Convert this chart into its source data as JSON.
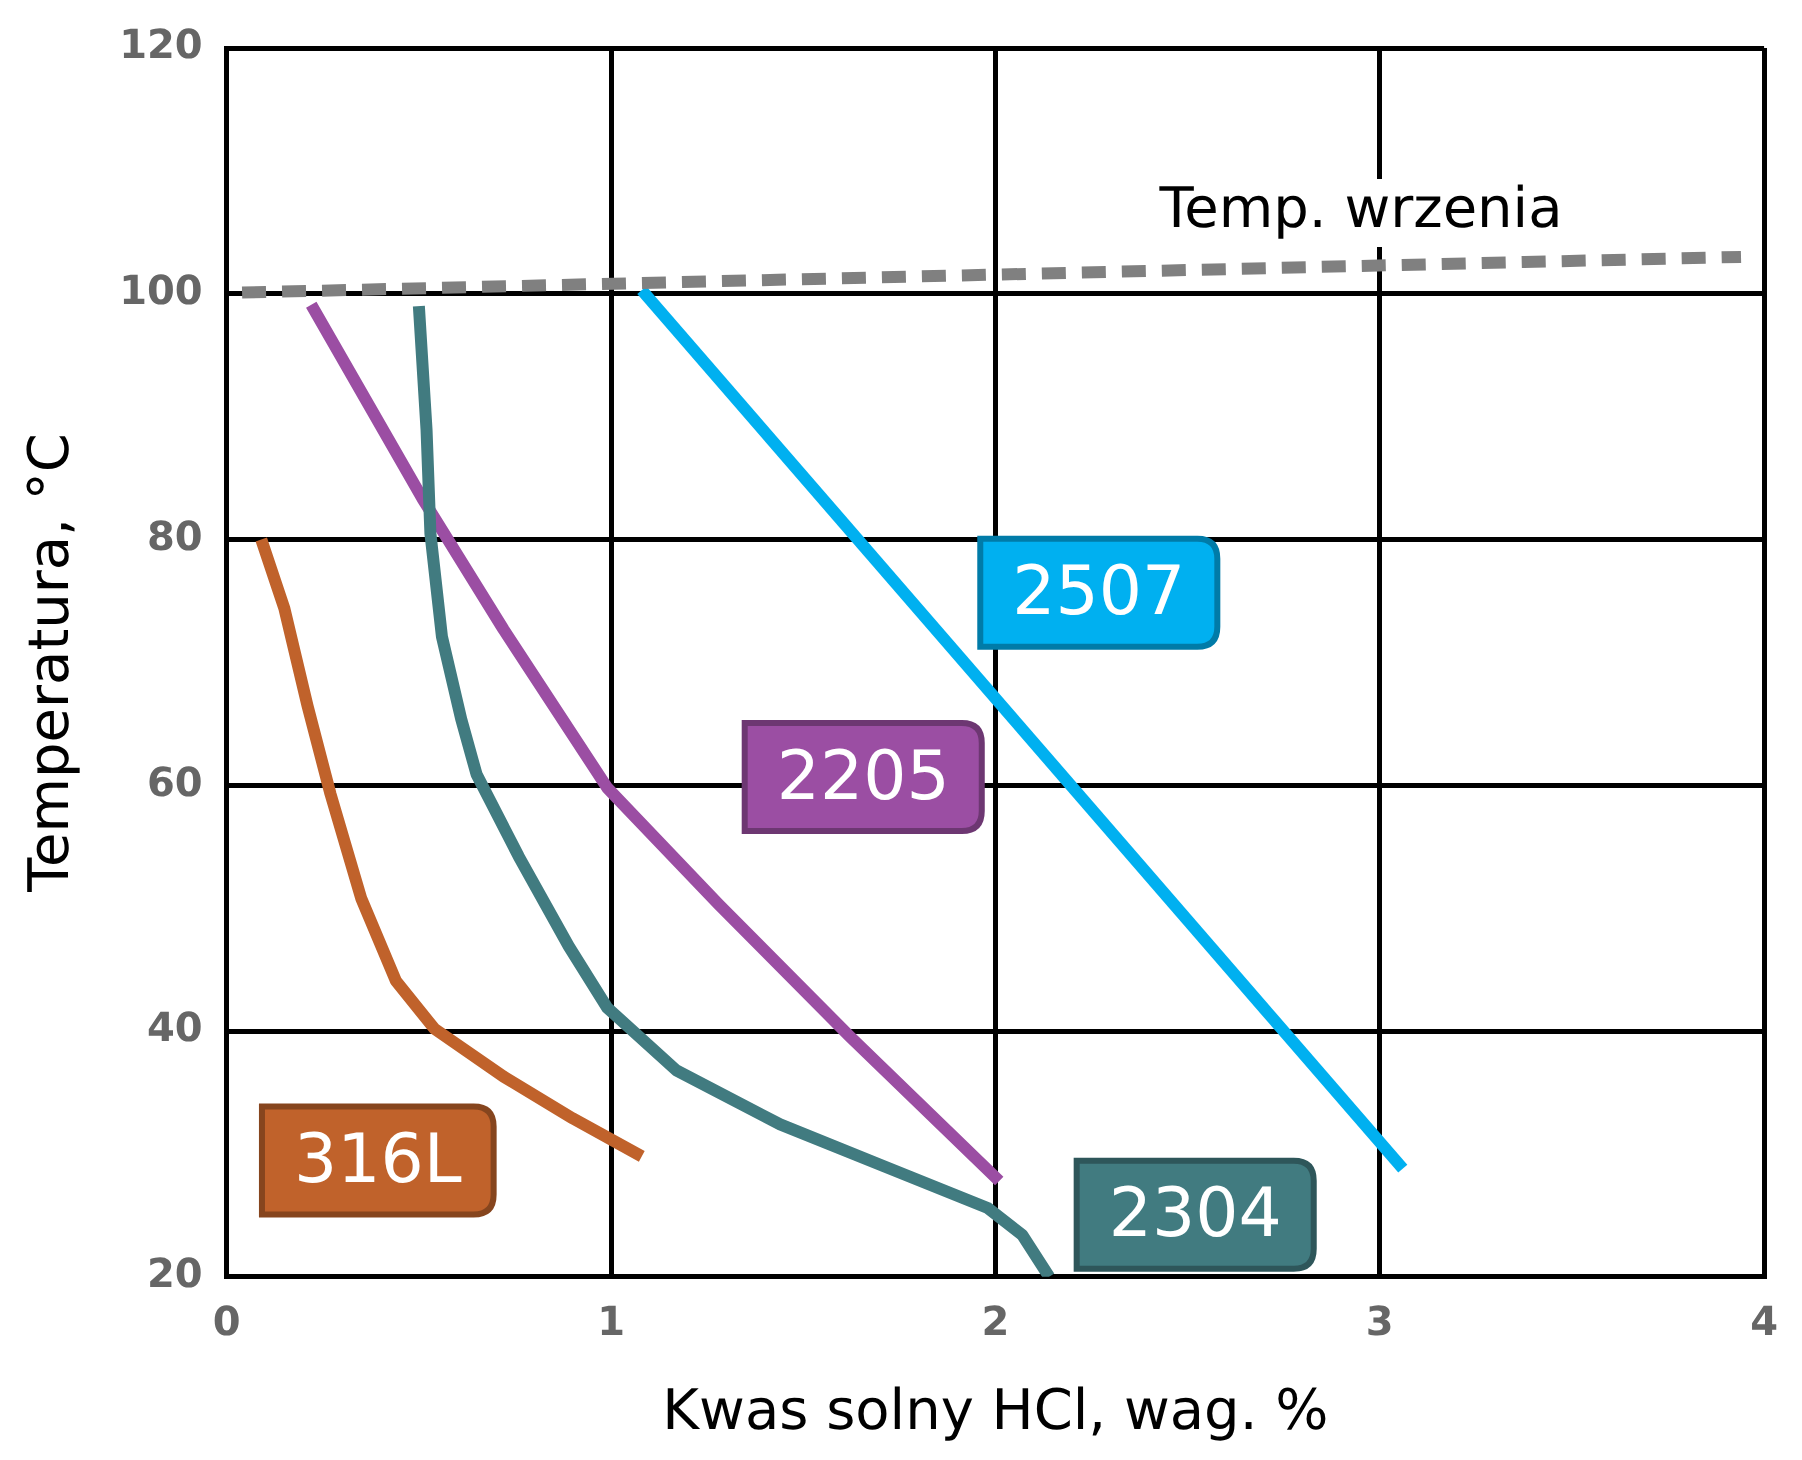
{
  "chart_data": {
    "type": "line",
    "xlabel": "Kwas solny HCl, wag. %",
    "ylabel": "Temperatura, °C",
    "xlim": [
      0,
      4
    ],
    "xticks": [
      0,
      1,
      2,
      3,
      4
    ],
    "ylim": [
      20,
      120
    ],
    "yticks": [
      20,
      40,
      60,
      80,
      100,
      120
    ],
    "grid": true,
    "legend": false,
    "marker": "none",
    "series": [
      {
        "name": "Temp. wrzenia",
        "color": "#808080",
        "line_style": "dashed",
        "x": [
          0.04,
          3.94
        ],
        "values": [
          100.1,
          103
        ]
      },
      {
        "name": "316L",
        "color": "#c0622b",
        "x": [
          0.09,
          0.15,
          0.21,
          0.27,
          0.35,
          0.44,
          0.54,
          0.72,
          0.9,
          1.08
        ],
        "values": [
          80,
          74.4,
          66.5,
          59.3,
          50.8,
          44.1,
          40.2,
          36.3,
          32.9,
          29.8
        ]
      },
      {
        "name": "2304",
        "color": "#417b80",
        "x": [
          0.5,
          0.52,
          0.53,
          0.56,
          0.61,
          0.65,
          0.76,
          0.89,
          0.99,
          1.17,
          1.44,
          1.71,
          1.98,
          2.07,
          2.14
        ],
        "values": [
          99,
          88.9,
          80.5,
          72.1,
          65.4,
          60.9,
          54.2,
          46.9,
          41.9,
          36.8,
          32.4,
          29,
          25.6,
          23.4,
          20
        ]
      },
      {
        "name": "2205",
        "color": "#9b4ea3",
        "x": [
          0.22,
          0.51,
          0.72,
          0.99,
          1.28,
          1.62,
          2.01
        ],
        "values": [
          99.1,
          83.3,
          72.7,
          59.8,
          50.3,
          39.6,
          27.8
        ]
      },
      {
        "name": "2507",
        "color": "#00b0f0",
        "x": [
          1.08,
          3.06
        ],
        "values": [
          100.3,
          28.8
        ]
      }
    ]
  }
}
